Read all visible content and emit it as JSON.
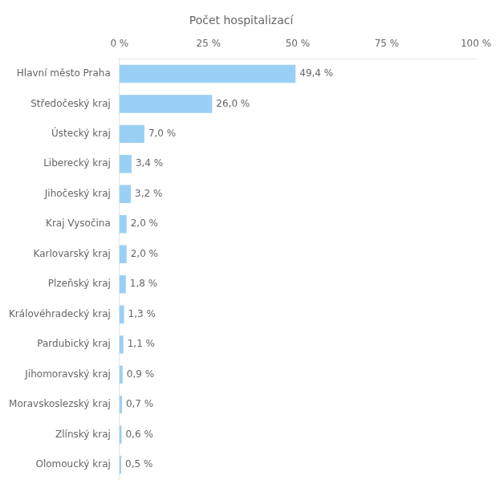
{
  "chart_data": {
    "type": "bar",
    "orientation": "horizontal",
    "title": "Počet hospitalizací",
    "categories": [
      "Hlavní město Praha",
      "Středočeský kraj",
      "Ústecký kraj",
      "Liberecký kraj",
      "Jihočeský kraj",
      "Kraj Vysočina",
      "Karlovarský kraj",
      "Plzeňský kraj",
      "Královéhradecký kraj",
      "Pardubický kraj",
      "Jihomoravský kraj",
      "Moravskoslezský kraj",
      "Zlínský kraj",
      "Olomoucký kraj"
    ],
    "values": [
      49.4,
      26.0,
      7.0,
      3.4,
      3.2,
      2.0,
      2.0,
      1.8,
      1.3,
      1.1,
      0.9,
      0.7,
      0.6,
      0.5
    ],
    "value_labels": [
      "49,4 %",
      "26,0 %",
      "7,0 %",
      "3,4 %",
      "3,2 %",
      "2,0 %",
      "2,0 %",
      "1,8 %",
      "1,3 %",
      "1,1 %",
      "0,9 %",
      "0,7 %",
      "0,6 %",
      "0,5 %"
    ],
    "data_labels": true,
    "xlim": [
      0,
      100
    ],
    "xticks": [
      {
        "value": 0,
        "label": "0 %"
      },
      {
        "value": 25,
        "label": "25 %"
      },
      {
        "value": 50,
        "label": "50 %"
      },
      {
        "value": 75,
        "label": "75 %"
      },
      {
        "value": 100,
        "label": "100 %"
      }
    ],
    "grid": false
  }
}
